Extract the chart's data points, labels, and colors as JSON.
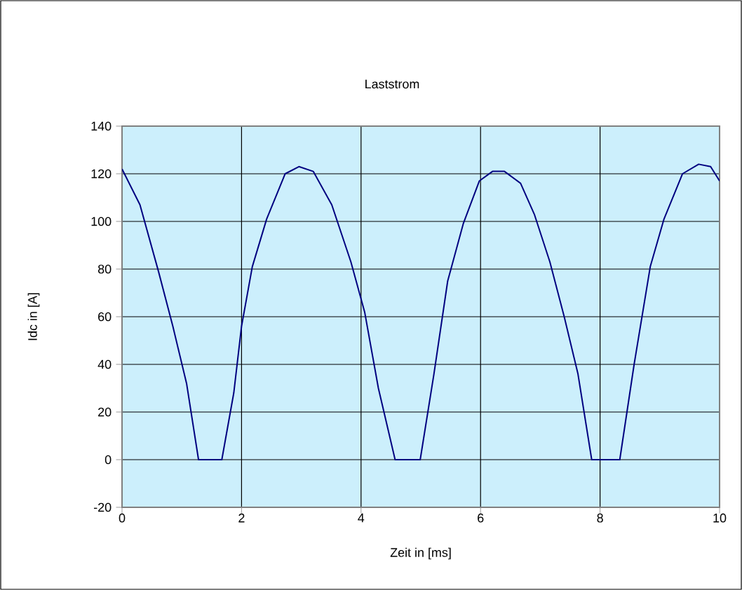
{
  "chart_data": {
    "type": "line",
    "title": "Laststrom",
    "xlabel": "Zeit in [ms]",
    "ylabel": "Idc in [A]",
    "x": [
      0,
      0.3,
      0.61,
      0.85,
      1.08,
      1.28,
      1.67,
      1.87,
      2.0,
      2.18,
      2.42,
      2.73,
      2.96,
      3.2,
      3.51,
      3.83,
      4.06,
      4.29,
      4.57,
      4.99,
      5.22,
      5.45,
      5.71,
      5.98,
      6.2,
      6.4,
      6.67,
      6.9,
      7.16,
      7.4,
      7.63,
      7.86,
      8.0,
      8.33,
      8.57,
      8.84,
      9.07,
      9.38,
      9.65,
      9.85,
      10
    ],
    "series": [
      {
        "color": "#000080",
        "values": [
          122,
          107,
          79,
          56,
          32,
          0,
          0,
          28,
          56,
          81,
          101,
          120,
          123,
          121,
          107,
          83,
          62,
          30,
          0,
          0,
          36,
          75,
          99,
          117,
          121,
          121,
          116,
          103,
          83,
          60,
          36,
          0,
          0,
          0,
          40,
          81,
          101,
          120,
          124,
          123,
          117
        ]
      }
    ],
    "xlim": [
      0,
      10
    ],
    "xticks": [
      0,
      2,
      4,
      6,
      8,
      10
    ],
    "ylim": [
      -20,
      140
    ],
    "yticks": [
      -20,
      0,
      20,
      40,
      60,
      80,
      100,
      120,
      140
    ],
    "grid": true,
    "marker": "none",
    "line_style": "solid"
  }
}
